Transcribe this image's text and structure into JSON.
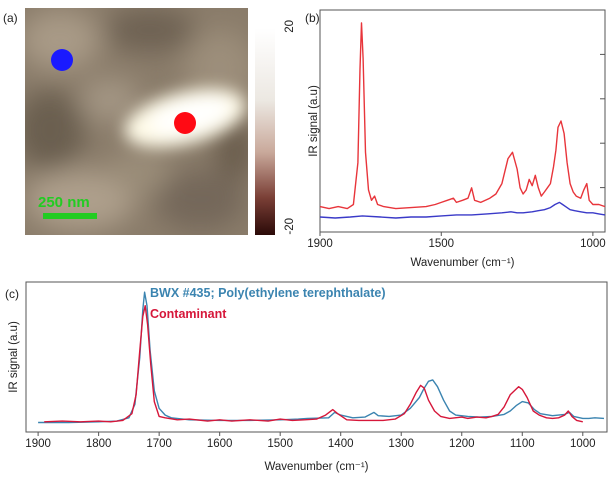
{
  "panels": {
    "a": {
      "label": "(a)",
      "scale_bar_label": "250 nm",
      "colorbar": {
        "max_label": "20",
        "min_label": "-20",
        "range": [
          -20,
          20
        ]
      },
      "markers": [
        {
          "name": "blue-marker",
          "color": "#1a1aff"
        },
        {
          "name": "red-marker",
          "color": "#ff0a14"
        }
      ],
      "scale_bar_color": "#22cc22"
    },
    "b": {
      "label": "(b)"
    },
    "c": {
      "label": "(c)"
    }
  },
  "chart_data": [
    {
      "panel": "b",
      "type": "line",
      "title": "",
      "xlabel": "Wavenumber (cm⁻¹)",
      "ylabel": "IR signal (a.u)",
      "xlim": [
        1900,
        960
      ],
      "x_reversed": true,
      "ylim": [
        0,
        1
      ],
      "xticks": [
        1900,
        1500,
        1000
      ],
      "grid": false,
      "series": [
        {
          "name": "",
          "color": "#e8353b",
          "points": [
            [
              1900,
              0.09
            ],
            [
              1870,
              0.08
            ],
            [
              1840,
              0.09
            ],
            [
              1810,
              0.08
            ],
            [
              1790,
              0.1
            ],
            [
              1775,
              0.3
            ],
            [
              1768,
              0.75
            ],
            [
              1763,
              0.97
            ],
            [
              1758,
              0.8
            ],
            [
              1750,
              0.35
            ],
            [
              1740,
              0.17
            ],
            [
              1730,
              0.12
            ],
            [
              1720,
              0.14
            ],
            [
              1710,
              0.1
            ],
            [
              1690,
              0.09
            ],
            [
              1650,
              0.08
            ],
            [
              1600,
              0.085
            ],
            [
              1550,
              0.09
            ],
            [
              1520,
              0.1
            ],
            [
              1500,
              0.11
            ],
            [
              1480,
              0.12
            ],
            [
              1460,
              0.13
            ],
            [
              1450,
              0.11
            ],
            [
              1430,
              0.12
            ],
            [
              1412,
              0.13
            ],
            [
              1400,
              0.18
            ],
            [
              1390,
              0.12
            ],
            [
              1370,
              0.11
            ],
            [
              1340,
              0.13
            ],
            [
              1320,
              0.15
            ],
            [
              1300,
              0.2
            ],
            [
              1280,
              0.32
            ],
            [
              1265,
              0.35
            ],
            [
              1250,
              0.27
            ],
            [
              1240,
              0.18
            ],
            [
              1230,
              0.15
            ],
            [
              1220,
              0.17
            ],
            [
              1210,
              0.22
            ],
            [
              1200,
              0.19
            ],
            [
              1190,
              0.24
            ],
            [
              1180,
              0.18
            ],
            [
              1170,
              0.14
            ],
            [
              1160,
              0.16
            ],
            [
              1150,
              0.18
            ],
            [
              1140,
              0.2
            ],
            [
              1130,
              0.28
            ],
            [
              1122,
              0.36
            ],
            [
              1115,
              0.47
            ],
            [
              1105,
              0.5
            ],
            [
              1095,
              0.44
            ],
            [
              1085,
              0.3
            ],
            [
              1075,
              0.2
            ],
            [
              1065,
              0.16
            ],
            [
              1055,
              0.14
            ],
            [
              1040,
              0.13
            ],
            [
              1030,
              0.17
            ],
            [
              1020,
              0.2
            ],
            [
              1012,
              0.12
            ],
            [
              1000,
              0.1
            ],
            [
              980,
              0.1
            ],
            [
              960,
              0.09
            ]
          ]
        },
        {
          "name": "",
          "color": "#3a3ac8",
          "points": [
            [
              1900,
              0.04
            ],
            [
              1850,
              0.035
            ],
            [
              1800,
              0.04
            ],
            [
              1760,
              0.045
            ],
            [
              1700,
              0.04
            ],
            [
              1650,
              0.035
            ],
            [
              1600,
              0.04
            ],
            [
              1550,
              0.04
            ],
            [
              1500,
              0.045
            ],
            [
              1450,
              0.05
            ],
            [
              1400,
              0.05
            ],
            [
              1350,
              0.055
            ],
            [
              1300,
              0.06
            ],
            [
              1270,
              0.065
            ],
            [
              1250,
              0.06
            ],
            [
              1230,
              0.06
            ],
            [
              1200,
              0.065
            ],
            [
              1180,
              0.07
            ],
            [
              1160,
              0.075
            ],
            [
              1140,
              0.085
            ],
            [
              1125,
              0.1
            ],
            [
              1110,
              0.11
            ],
            [
              1100,
              0.1
            ],
            [
              1090,
              0.09
            ],
            [
              1075,
              0.075
            ],
            [
              1060,
              0.07
            ],
            [
              1040,
              0.065
            ],
            [
              1020,
              0.06
            ],
            [
              1000,
              0.06
            ],
            [
              980,
              0.055
            ],
            [
              960,
              0.05
            ]
          ]
        }
      ]
    },
    {
      "panel": "c",
      "type": "line",
      "title": "",
      "xlabel": "Wavenumber (cm⁻¹)",
      "ylabel": "IR signal (a.u)",
      "xlim": [
        1920,
        960
      ],
      "x_reversed": true,
      "ylim": [
        0,
        1
      ],
      "xticks": [
        1900,
        1800,
        1700,
        1600,
        1500,
        1400,
        1300,
        1200,
        1100,
        1000
      ],
      "grid": false,
      "legend_position": "top-left",
      "series": [
        {
          "name": "BWX #435; Poly(ethylene terephthalate)",
          "color": "#3b84b0",
          "points": [
            [
              1900,
              0.015
            ],
            [
              1850,
              0.015
            ],
            [
              1800,
              0.02
            ],
            [
              1770,
              0.025
            ],
            [
              1750,
              0.05
            ],
            [
              1740,
              0.15
            ],
            [
              1732,
              0.5
            ],
            [
              1727,
              0.85
            ],
            [
              1724,
              0.98
            ],
            [
              1720,
              0.88
            ],
            [
              1715,
              0.55
            ],
            [
              1708,
              0.25
            ],
            [
              1700,
              0.12
            ],
            [
              1690,
              0.07
            ],
            [
              1680,
              0.05
            ],
            [
              1650,
              0.035
            ],
            [
              1600,
              0.03
            ],
            [
              1550,
              0.03
            ],
            [
              1500,
              0.035
            ],
            [
              1470,
              0.04
            ],
            [
              1455,
              0.045
            ],
            [
              1420,
              0.05
            ],
            [
              1410,
              0.09
            ],
            [
              1400,
              0.07
            ],
            [
              1380,
              0.05
            ],
            [
              1360,
              0.055
            ],
            [
              1345,
              0.09
            ],
            [
              1338,
              0.065
            ],
            [
              1320,
              0.06
            ],
            [
              1300,
              0.07
            ],
            [
              1285,
              0.12
            ],
            [
              1270,
              0.2
            ],
            [
              1262,
              0.27
            ],
            [
              1255,
              0.32
            ],
            [
              1248,
              0.33
            ],
            [
              1240,
              0.28
            ],
            [
              1230,
              0.18
            ],
            [
              1220,
              0.1
            ],
            [
              1210,
              0.07
            ],
            [
              1190,
              0.06
            ],
            [
              1170,
              0.055
            ],
            [
              1150,
              0.06
            ],
            [
              1130,
              0.075
            ],
            [
              1120,
              0.1
            ],
            [
              1110,
              0.14
            ],
            [
              1100,
              0.17
            ],
            [
              1090,
              0.16
            ],
            [
              1080,
              0.11
            ],
            [
              1070,
              0.08
            ],
            [
              1050,
              0.065
            ],
            [
              1030,
              0.075
            ],
            [
              1022,
              0.09
            ],
            [
              1015,
              0.06
            ],
            [
              1000,
              0.045
            ],
            [
              990,
              0.045
            ],
            [
              980,
              0.05
            ],
            [
              965,
              0.045
            ]
          ]
        },
        {
          "name": "Contaminant",
          "color": "#d6173a",
          "points": [
            [
              1890,
              0.02
            ],
            [
              1860,
              0.025
            ],
            [
              1830,
              0.02
            ],
            [
              1800,
              0.025
            ],
            [
              1780,
              0.02
            ],
            [
              1760,
              0.03
            ],
            [
              1745,
              0.08
            ],
            [
              1738,
              0.22
            ],
            [
              1732,
              0.55
            ],
            [
              1727,
              0.8
            ],
            [
              1723,
              0.88
            ],
            [
              1719,
              0.74
            ],
            [
              1714,
              0.45
            ],
            [
              1708,
              0.17
            ],
            [
              1700,
              0.06
            ],
            [
              1690,
              0.05
            ],
            [
              1670,
              0.035
            ],
            [
              1650,
              0.04
            ],
            [
              1620,
              0.025
            ],
            [
              1600,
              0.035
            ],
            [
              1580,
              0.025
            ],
            [
              1550,
              0.035
            ],
            [
              1520,
              0.025
            ],
            [
              1500,
              0.04
            ],
            [
              1480,
              0.03
            ],
            [
              1460,
              0.035
            ],
            [
              1440,
              0.04
            ],
            [
              1425,
              0.07
            ],
            [
              1413,
              0.11
            ],
            [
              1405,
              0.08
            ],
            [
              1390,
              0.035
            ],
            [
              1370,
              0.03
            ],
            [
              1350,
              0.03
            ],
            [
              1330,
              0.03
            ],
            [
              1310,
              0.04
            ],
            [
              1295,
              0.08
            ],
            [
              1285,
              0.15
            ],
            [
              1275,
              0.24
            ],
            [
              1268,
              0.29
            ],
            [
              1262,
              0.27
            ],
            [
              1255,
              0.18
            ],
            [
              1245,
              0.1
            ],
            [
              1235,
              0.06
            ],
            [
              1220,
              0.045
            ],
            [
              1200,
              0.055
            ],
            [
              1190,
              0.045
            ],
            [
              1175,
              0.055
            ],
            [
              1160,
              0.05
            ],
            [
              1150,
              0.06
            ],
            [
              1140,
              0.075
            ],
            [
              1130,
              0.13
            ],
            [
              1120,
              0.22
            ],
            [
              1113,
              0.25
            ],
            [
              1106,
              0.28
            ],
            [
              1100,
              0.26
            ],
            [
              1092,
              0.2
            ],
            [
              1082,
              0.1
            ],
            [
              1072,
              0.07
            ],
            [
              1060,
              0.05
            ],
            [
              1050,
              0.045
            ],
            [
              1040,
              0.05
            ],
            [
              1030,
              0.07
            ],
            [
              1024,
              0.1
            ],
            [
              1018,
              0.06
            ],
            [
              1010,
              0.03
            ],
            [
              1000,
              0.02
            ]
          ]
        }
      ]
    }
  ]
}
